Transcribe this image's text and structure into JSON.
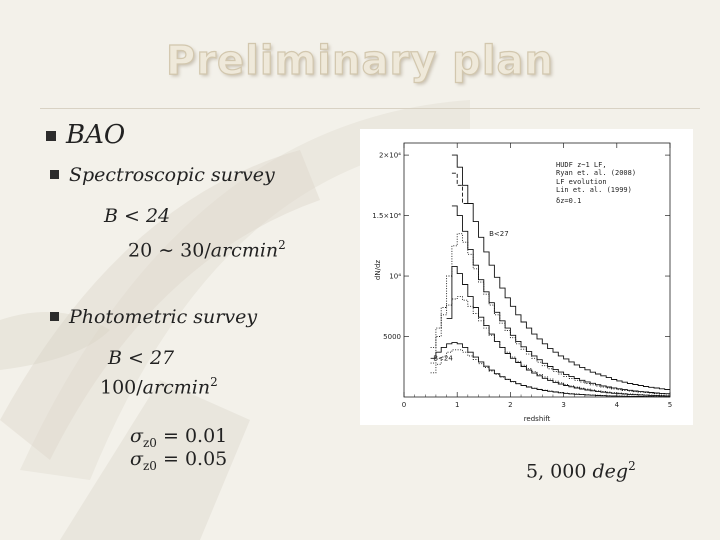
{
  "slide": {
    "title": "Preliminary plan",
    "bullets": [
      {
        "label": "BAO"
      },
      {
        "label": "Spectroscopic survey"
      },
      {
        "label": "Photometric survey"
      }
    ]
  },
  "spectroscopic": {
    "mag_cut": "B < 24",
    "density_base": "20 ∼ 30/",
    "density_unit": "arcmin",
    "density_exp": "2"
  },
  "photometric": {
    "mag_cut": "B < 27",
    "density_base": "100/",
    "density_unit": "arcmin",
    "density_exp": "2",
    "sigma_symbol": "σ",
    "sigma_sub": "z0",
    "sigma_values": [
      "= 0.01",
      "= 0.05"
    ]
  },
  "area": {
    "value": "5, 000 ",
    "unit": "deg",
    "exp": "2"
  },
  "chart_data": {
    "type": "line",
    "xlabel": "redshift",
    "ylabel": "dN/dz",
    "xlim": [
      0,
      5
    ],
    "ylim": [
      0,
      21000
    ],
    "x_ticks": [
      0,
      1,
      2,
      3,
      4,
      5
    ],
    "y_ticks": [
      {
        "value": 5000,
        "label": "5000"
      },
      {
        "value": 10000,
        "label": "10⁴"
      },
      {
        "value": 15000,
        "label": "1.5×10⁴"
      },
      {
        "value": 20000,
        "label": "2×10⁴"
      }
    ],
    "legend": [
      "HUDF z~1 LF,",
      "Ryan et. al. (2008)",
      "LF evolution",
      "Lin et. al. (1999)",
      "δz=0.1"
    ],
    "annotations": [
      {
        "text": "B<27",
        "x": 1.6,
        "y": 13300
      },
      {
        "text": "B<24",
        "x": 0.55,
        "y": 3000
      }
    ],
    "x": [
      0.05,
      0.15,
      0.25,
      0.35,
      0.45,
      0.55,
      0.65,
      0.75,
      0.85,
      0.95,
      1.05,
      1.15,
      1.25,
      1.35,
      1.45,
      1.55,
      1.65,
      1.75,
      1.85,
      1.95,
      2.05,
      2.15,
      2.25,
      2.35,
      2.45,
      2.55,
      2.65,
      2.75,
      2.85,
      2.95,
      3.05,
      3.15,
      3.25,
      3.35,
      3.45,
      3.55,
      3.65,
      3.75,
      3.85,
      3.95,
      4.05,
      4.15,
      4.25,
      4.35,
      4.45,
      4.55,
      4.65,
      4.75,
      4.85,
      4.95
    ],
    "series": [
      {
        "style": "solid",
        "values": [
          0,
          0,
          0,
          0,
          0,
          0,
          0,
          0,
          0,
          20000,
          19000,
          17500,
          16000,
          14500,
          13200,
          12000,
          10900,
          9900,
          9000,
          8200,
          7500,
          6800,
          6200,
          5700,
          5200,
          4800,
          4400,
          4000,
          3700,
          3400,
          3150,
          2900,
          2650,
          2450,
          2250,
          2050,
          1900,
          1750,
          1600,
          1450,
          1330,
          1220,
          1120,
          1030,
          950,
          870,
          800,
          740,
          680,
          620
        ]
      },
      {
        "style": "dashed",
        "values": [
          0,
          0,
          0,
          0,
          0,
          0,
          0,
          0,
          0,
          18500,
          17500,
          16000,
          0,
          0,
          0,
          0,
          0,
          0,
          0,
          0,
          0,
          0,
          0,
          0,
          0,
          0,
          0,
          0,
          0,
          0,
          0,
          0,
          0,
          0,
          0,
          0,
          0,
          0,
          0,
          0,
          0,
          0,
          0,
          0,
          0,
          0,
          0,
          0,
          0,
          0
        ]
      },
      {
        "style": "solid",
        "values": [
          0,
          0,
          0,
          0,
          0,
          0,
          0,
          0,
          0,
          15800,
          15000,
          13700,
          12200,
          10900,
          9700,
          8700,
          7800,
          7000,
          6300,
          5700,
          5100,
          4600,
          4150,
          3750,
          3400,
          3080,
          2790,
          2520,
          2280,
          2060,
          1870,
          1690,
          1530,
          1380,
          1250,
          1130,
          1020,
          920,
          830,
          750,
          680,
          610,
          550,
          500,
          450,
          410,
          370,
          330,
          300,
          270
        ]
      },
      {
        "style": "dotted",
        "values": [
          0,
          0,
          0,
          0,
          0,
          2800,
          5000,
          7400,
          10000,
          12500,
          13500,
          12800,
          11800,
          10600,
          9500,
          8500,
          7600,
          6800,
          6100,
          5500,
          4900,
          4400,
          3950,
          3550,
          3200,
          2880,
          2590,
          2330,
          2100,
          1890,
          1700,
          1530,
          1380,
          1240,
          1120,
          1010,
          910,
          820,
          740,
          670,
          600,
          540,
          490,
          440,
          400,
          360,
          320,
          290,
          260,
          240
        ]
      },
      {
        "style": "solid",
        "values": [
          0,
          0,
          0,
          0,
          0,
          0,
          0,
          0,
          6500,
          10800,
          10200,
          9300,
          8300,
          7400,
          6600,
          5900,
          5200,
          4600,
          4100,
          3600,
          3200,
          2850,
          2520,
          2230,
          1980,
          1750,
          1550,
          1370,
          1210,
          1070,
          950,
          840,
          740,
          660,
          580,
          510,
          450,
          400,
          350,
          310,
          275,
          245,
          215,
          190,
          170,
          150,
          130,
          115,
          100,
          90
        ]
      },
      {
        "style": "dotted",
        "values": [
          0,
          0,
          0,
          0,
          0,
          4100,
          5700,
          6800,
          7600,
          8100,
          8300,
          8000,
          7500,
          6900,
          6300,
          5700,
          5100,
          4600,
          4100,
          3700,
          3300,
          2950,
          2630,
          2350,
          2090,
          1860,
          1660,
          1480,
          1310,
          1170,
          1040,
          920,
          820,
          730,
          650,
          580,
          510,
          455,
          405,
          360,
          320,
          285,
          250,
          225,
          200,
          175,
          155,
          140,
          125,
          110
        ]
      },
      {
        "style": "solid",
        "values": [
          0,
          0,
          0,
          0,
          0,
          3200,
          3700,
          4100,
          4400,
          4500,
          4400,
          4100,
          3700,
          3300,
          2900,
          2550,
          2220,
          1930,
          1680,
          1460,
          1270,
          1100,
          950,
          830,
          720,
          620,
          540,
          470,
          410,
          350,
          300,
          260,
          225,
          195,
          170,
          145,
          125,
          110,
          95,
          80,
          70,
          60,
          52,
          45,
          39,
          34,
          29,
          25,
          22,
          19
        ]
      },
      {
        "style": "dotted",
        "values": [
          0,
          0,
          0,
          0,
          0,
          2000,
          2700,
          3300,
          3700,
          3900,
          3900,
          3700,
          3400,
          3100,
          2750,
          2450,
          2150,
          1880,
          1650,
          1440,
          1260,
          1100,
          960,
          840,
          730,
          640,
          560,
          490,
          430,
          370,
          325,
          285,
          250,
          215,
          190,
          165,
          145,
          125,
          110,
          95,
          83,
          72,
          63,
          55,
          48,
          42,
          36,
          32,
          28,
          24
        ]
      }
    ]
  }
}
